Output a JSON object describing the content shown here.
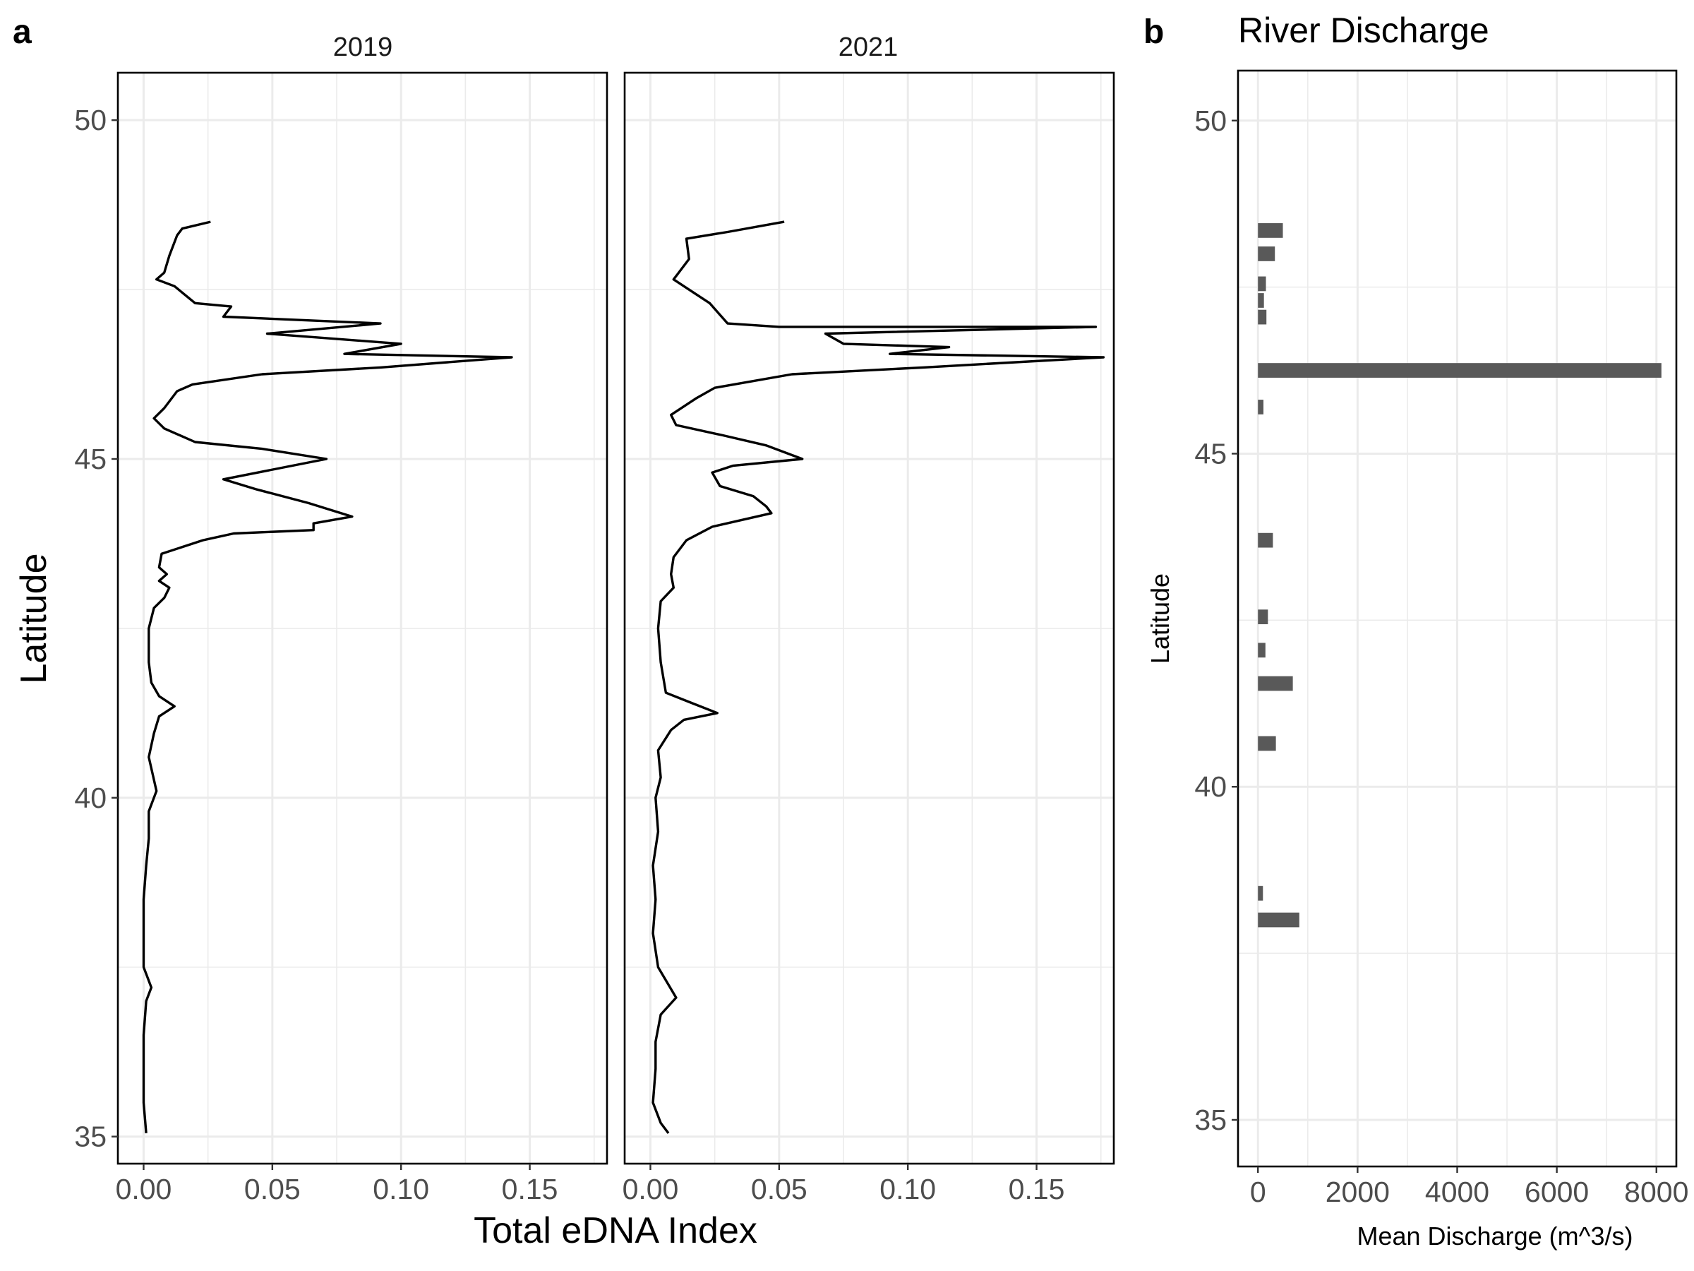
{
  "panel_labels": {
    "a": "a",
    "b": "b"
  },
  "colors": {
    "line": "#000000",
    "bar": "#595959",
    "grid": "#ebebeb",
    "frame": "#000000"
  },
  "chart_data": [
    {
      "type": "line",
      "panel": "a",
      "xlabel": "Total eDNA Index",
      "ylabel": "Latitude",
      "xlim": [
        -0.01,
        0.18
      ],
      "ylim": [
        34.6,
        50.7
      ],
      "xticks": [
        "0.00",
        "0.05",
        "0.10",
        "0.15"
      ],
      "yticks": [
        "35",
        "40",
        "45",
        "50"
      ],
      "grid": true,
      "facets": [
        {
          "name": "2019",
          "points": [
            [
              0.026,
              48.5
            ],
            [
              0.015,
              48.4
            ],
            [
              0.013,
              48.3
            ],
            [
              0.01,
              48.0
            ],
            [
              0.008,
              47.75
            ],
            [
              0.005,
              47.65
            ],
            [
              0.012,
              47.55
            ],
            [
              0.02,
              47.3
            ],
            [
              0.034,
              47.25
            ],
            [
              0.031,
              47.1
            ],
            [
              0.092,
              47.0
            ],
            [
              0.048,
              46.85
            ],
            [
              0.1,
              46.7
            ],
            [
              0.078,
              46.55
            ],
            [
              0.143,
              46.5
            ],
            [
              0.092,
              46.35
            ],
            [
              0.046,
              46.25
            ],
            [
              0.019,
              46.1
            ],
            [
              0.013,
              46.0
            ],
            [
              0.008,
              45.75
            ],
            [
              0.004,
              45.6
            ],
            [
              0.008,
              45.45
            ],
            [
              0.02,
              45.25
            ],
            [
              0.046,
              45.15
            ],
            [
              0.071,
              45.0
            ],
            [
              0.031,
              44.7
            ],
            [
              0.044,
              44.55
            ],
            [
              0.064,
              44.35
            ],
            [
              0.081,
              44.15
            ],
            [
              0.066,
              44.05
            ],
            [
              0.066,
              43.95
            ],
            [
              0.035,
              43.9
            ],
            [
              0.023,
              43.8
            ],
            [
              0.007,
              43.6
            ],
            [
              0.006,
              43.4
            ],
            [
              0.009,
              43.3
            ],
            [
              0.006,
              43.2
            ],
            [
              0.01,
              43.1
            ],
            [
              0.008,
              42.95
            ],
            [
              0.004,
              42.8
            ],
            [
              0.002,
              42.5
            ],
            [
              0.002,
              42.0
            ],
            [
              0.003,
              41.7
            ],
            [
              0.006,
              41.5
            ],
            [
              0.012,
              41.35
            ],
            [
              0.006,
              41.2
            ],
            [
              0.004,
              40.95
            ],
            [
              0.002,
              40.6
            ],
            [
              0.005,
              40.1
            ],
            [
              0.002,
              39.8
            ],
            [
              0.002,
              39.4
            ],
            [
              0.001,
              39.0
            ],
            [
              0.0,
              38.5
            ],
            [
              0.0,
              38.0
            ],
            [
              0.0,
              37.5
            ],
            [
              0.003,
              37.2
            ],
            [
              0.001,
              37.0
            ],
            [
              0.0,
              36.5
            ],
            [
              0.0,
              36.0
            ],
            [
              0.0,
              35.5
            ],
            [
              0.001,
              35.05
            ]
          ]
        },
        {
          "name": "2021",
          "points": [
            [
              0.052,
              48.5
            ],
            [
              0.03,
              48.35
            ],
            [
              0.014,
              48.25
            ],
            [
              0.015,
              47.95
            ],
            [
              0.011,
              47.75
            ],
            [
              0.009,
              47.65
            ],
            [
              0.017,
              47.45
            ],
            [
              0.023,
              47.3
            ],
            [
              0.03,
              47.0
            ],
            [
              0.05,
              46.95
            ],
            [
              0.173,
              46.95
            ],
            [
              0.068,
              46.85
            ],
            [
              0.075,
              46.7
            ],
            [
              0.116,
              46.65
            ],
            [
              0.093,
              46.55
            ],
            [
              0.176,
              46.5
            ],
            [
              0.106,
              46.35
            ],
            [
              0.055,
              46.25
            ],
            [
              0.025,
              46.05
            ],
            [
              0.018,
              45.9
            ],
            [
              0.008,
              45.65
            ],
            [
              0.01,
              45.5
            ],
            [
              0.028,
              45.35
            ],
            [
              0.045,
              45.2
            ],
            [
              0.059,
              45.0
            ],
            [
              0.032,
              44.9
            ],
            [
              0.024,
              44.8
            ],
            [
              0.027,
              44.6
            ],
            [
              0.04,
              44.45
            ],
            [
              0.045,
              44.3
            ],
            [
              0.047,
              44.2
            ],
            [
              0.024,
              44.0
            ],
            [
              0.014,
              43.8
            ],
            [
              0.009,
              43.55
            ],
            [
              0.008,
              43.3
            ],
            [
              0.009,
              43.1
            ],
            [
              0.004,
              42.9
            ],
            [
              0.003,
              42.5
            ],
            [
              0.004,
              42.0
            ],
            [
              0.006,
              41.55
            ],
            [
              0.016,
              41.4
            ],
            [
              0.026,
              41.25
            ],
            [
              0.013,
              41.15
            ],
            [
              0.008,
              41.0
            ],
            [
              0.003,
              40.7
            ],
            [
              0.004,
              40.3
            ],
            [
              0.002,
              40.0
            ],
            [
              0.003,
              39.5
            ],
            [
              0.001,
              39.0
            ],
            [
              0.002,
              38.5
            ],
            [
              0.001,
              38.0
            ],
            [
              0.003,
              37.5
            ],
            [
              0.01,
              37.05
            ],
            [
              0.004,
              36.8
            ],
            [
              0.002,
              36.4
            ],
            [
              0.002,
              36.0
            ],
            [
              0.001,
              35.5
            ],
            [
              0.004,
              35.2
            ],
            [
              0.007,
              35.05
            ]
          ]
        }
      ]
    },
    {
      "type": "bar",
      "orientation": "horizontal",
      "panel": "b",
      "title": "River Discharge",
      "xlabel": "Mean Discharge (m^3/s)",
      "ylabel": "Latitude",
      "xlim": [
        -400,
        8400
      ],
      "ylim": [
        34.3,
        50.75
      ],
      "xticks": [
        "0",
        "2000",
        "4000",
        "6000",
        "8000"
      ],
      "yticks": [
        "35",
        "40",
        "45",
        "50"
      ],
      "grid": true,
      "bar_width_deg": 0.22,
      "bars": [
        {
          "lat": 48.35,
          "value": 500
        },
        {
          "lat": 48.0,
          "value": 340
        },
        {
          "lat": 47.55,
          "value": 160
        },
        {
          "lat": 47.3,
          "value": 120
        },
        {
          "lat": 47.05,
          "value": 170
        },
        {
          "lat": 46.25,
          "value": 8100
        },
        {
          "lat": 45.7,
          "value": 110
        },
        {
          "lat": 43.7,
          "value": 300
        },
        {
          "lat": 42.55,
          "value": 200
        },
        {
          "lat": 42.05,
          "value": 150
        },
        {
          "lat": 41.55,
          "value": 700
        },
        {
          "lat": 40.65,
          "value": 360
        },
        {
          "lat": 38.4,
          "value": 100
        },
        {
          "lat": 38.0,
          "value": 830
        }
      ]
    }
  ]
}
